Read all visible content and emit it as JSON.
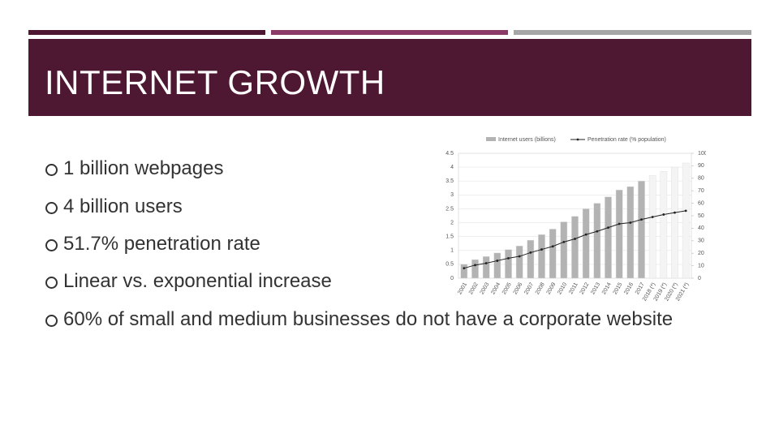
{
  "slide": {
    "title": "INTERNET GROWTH",
    "bullets": [
      "1 billion webpages",
      "4 billion users",
      "51.7% penetration rate",
      "Linear vs. exponential increase",
      "60% of small and medium businesses do not have a corporate website"
    ]
  },
  "chart_data": {
    "type": "bar-line",
    "categories": [
      "2001",
      "2002",
      "2003",
      "2004",
      "2005",
      "2006",
      "2007",
      "2008",
      "2009",
      "2010",
      "2011",
      "2012",
      "2013",
      "2014",
      "2015",
      "2016",
      "2017",
      "2018 (*)",
      "2019 (*)",
      "2020 (*)",
      "2021 (*)"
    ],
    "series": [
      {
        "name": "Internet users (billions)",
        "type": "bar",
        "color": "#b3b3b3",
        "colors": [
          "#b3b3b3",
          "#b3b3b3",
          "#b3b3b3",
          "#b3b3b3",
          "#b3b3b3",
          "#b3b3b3",
          "#b3b3b3",
          "#b3b3b3",
          "#b3b3b3",
          "#b3b3b3",
          "#b3b3b3",
          "#b3b3b3",
          "#b3b3b3",
          "#b3b3b3",
          "#b3b3b3",
          "#b3b3b3",
          "#b3b3b3",
          "#f4f4f4",
          "#f4f4f4",
          "#f4f4f4",
          "#f4f4f4"
        ],
        "values": [
          0.5,
          0.67,
          0.78,
          0.91,
          1.03,
          1.16,
          1.37,
          1.57,
          1.77,
          2.03,
          2.23,
          2.5,
          2.7,
          2.93,
          3.18,
          3.3,
          3.5,
          3.7,
          3.85,
          4.0,
          4.15
        ]
      },
      {
        "name": "Penetration rate (% population)",
        "type": "line",
        "color": "#222222",
        "axis": "y2",
        "values": [
          8,
          10.5,
          12,
          14,
          16,
          17.5,
          20.5,
          23,
          25.5,
          29,
          31.5,
          35,
          37.5,
          40.5,
          43.5,
          44.5,
          47,
          49,
          51,
          52.5,
          54
        ]
      }
    ],
    "ylim": [
      0,
      4.5
    ],
    "yticks": [
      0,
      0.5,
      1,
      1.5,
      2,
      2.5,
      3,
      3.5,
      4,
      4.5
    ],
    "y2lim": [
      0,
      100
    ],
    "y2ticks": [
      0,
      10,
      20,
      30,
      40,
      50,
      60,
      70,
      80,
      90,
      100
    ],
    "grid": true
  }
}
